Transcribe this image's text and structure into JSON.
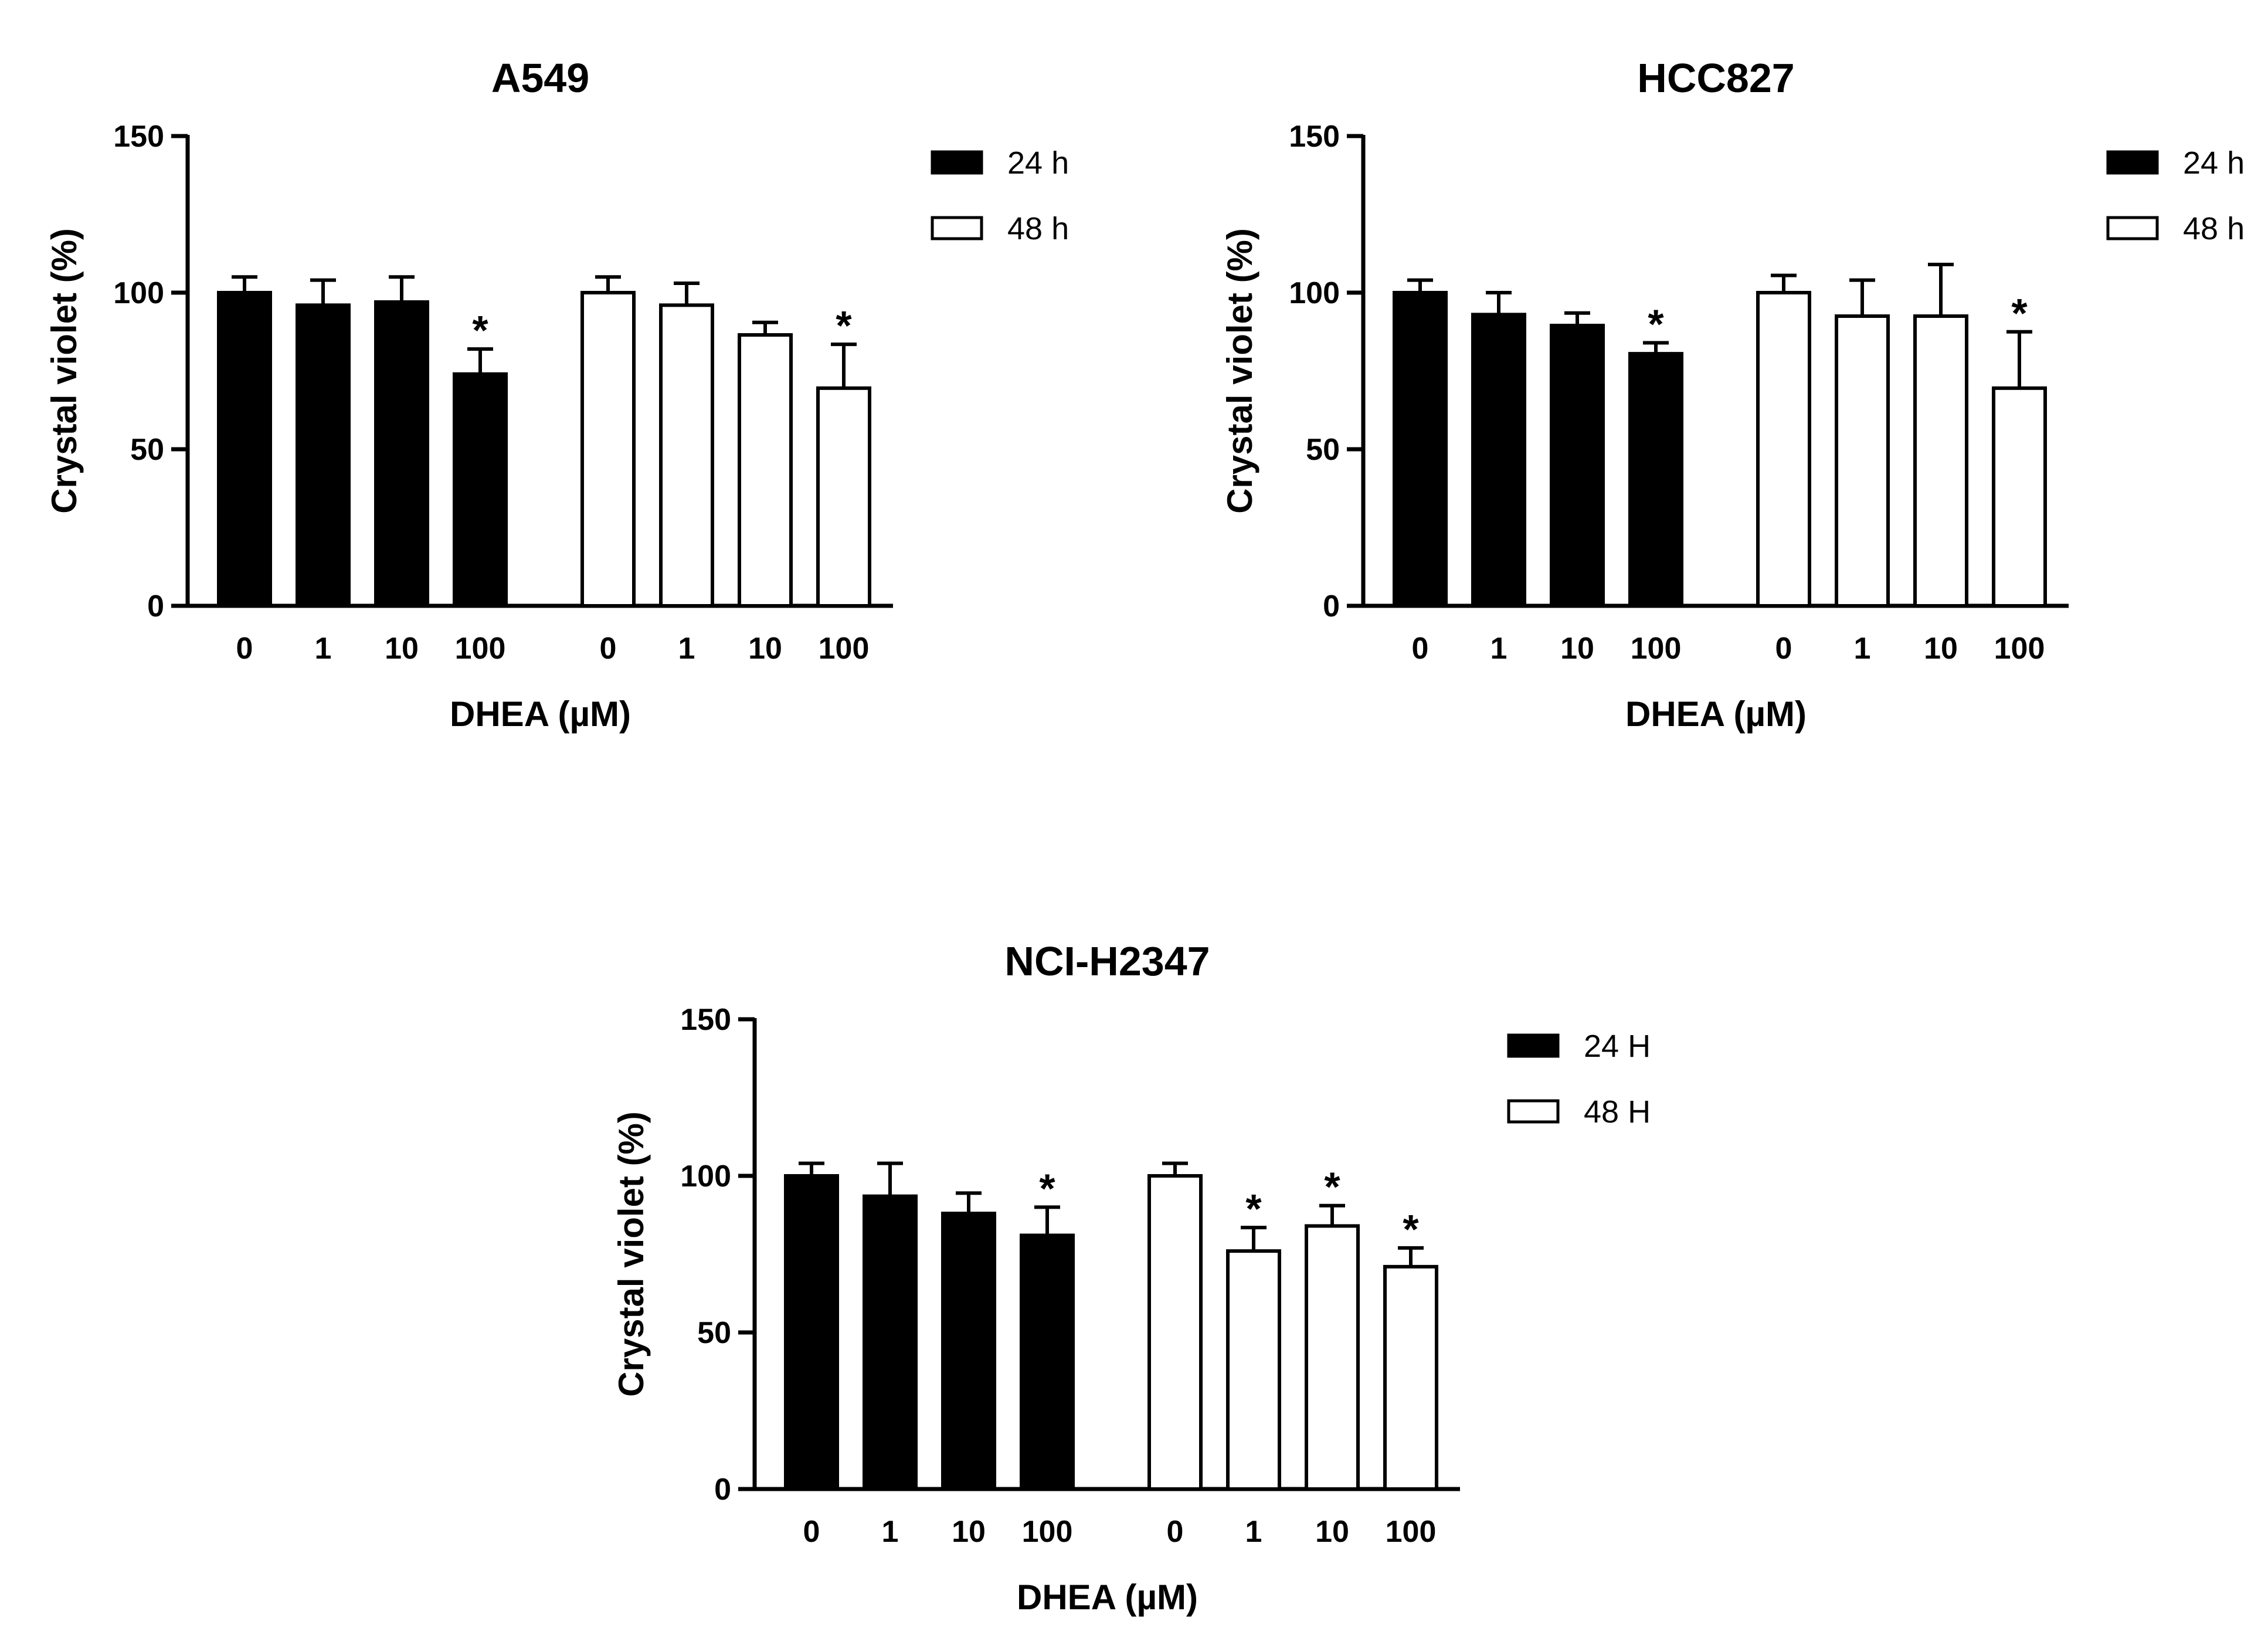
{
  "chart_data": [
    {
      "type": "bar",
      "title": "A549",
      "xlabel": "DHEA (µM)",
      "ylabel": "Crystal violet (%)",
      "ylim": [
        0,
        150
      ],
      "yticks": [
        0,
        50,
        100,
        150
      ],
      "categories": [
        "0",
        "1",
        "10",
        "100"
      ],
      "series": [
        {
          "name": "24 h",
          "fill": "#000000",
          "values": [
            100,
            96,
            97,
            74
          ],
          "error": [
            5,
            8,
            8,
            8
          ],
          "significant": [
            false,
            false,
            false,
            true
          ]
        },
        {
          "name": "48 h",
          "fill": "#ffffff",
          "values": [
            100,
            96,
            86.5,
            69.5
          ],
          "error": [
            5,
            7,
            4,
            14
          ],
          "significant": [
            false,
            false,
            false,
            true
          ]
        }
      ],
      "legend_position": "top-right",
      "grid": false
    },
    {
      "type": "bar",
      "title": "HCC827",
      "xlabel": "DHEA (µM)",
      "ylabel": "Crystal violet (%)",
      "ylim": [
        0,
        150
      ],
      "yticks": [
        0,
        50,
        100,
        150
      ],
      "categories": [
        "0",
        "1",
        "10",
        "100"
      ],
      "series": [
        {
          "name": "24 h",
          "fill": "#000000",
          "values": [
            100,
            93,
            89.5,
            80.5
          ],
          "error": [
            4,
            7,
            4,
            3.5
          ],
          "significant": [
            false,
            false,
            false,
            true
          ]
        },
        {
          "name": "48 h",
          "fill": "#ffffff",
          "values": [
            100,
            92.5,
            92.5,
            69.5
          ],
          "error": [
            5.5,
            11.5,
            16.5,
            18
          ],
          "significant": [
            false,
            false,
            false,
            true
          ]
        }
      ],
      "legend_position": "top-right",
      "grid": false
    },
    {
      "type": "bar",
      "title": "NCI-H2347",
      "xlabel": "DHEA (µM)",
      "ylabel": "Crystal violet (%)",
      "ylim": [
        0,
        150
      ],
      "yticks": [
        0,
        50,
        100,
        150
      ],
      "categories": [
        "0",
        "1",
        "10",
        "100"
      ],
      "series": [
        {
          "name": "24 H",
          "fill": "#000000",
          "values": [
            100,
            93.5,
            88,
            81
          ],
          "error": [
            4,
            10.5,
            6.5,
            9
          ],
          "significant": [
            false,
            false,
            false,
            true
          ]
        },
        {
          "name": "48 H",
          "fill": "#ffffff",
          "values": [
            100,
            76,
            84,
            71
          ],
          "error": [
            4,
            7.5,
            6.5,
            6
          ],
          "significant": [
            false,
            true,
            true,
            true
          ]
        }
      ],
      "legend_position": "top-right",
      "grid": false
    }
  ],
  "significance_marker": "*"
}
